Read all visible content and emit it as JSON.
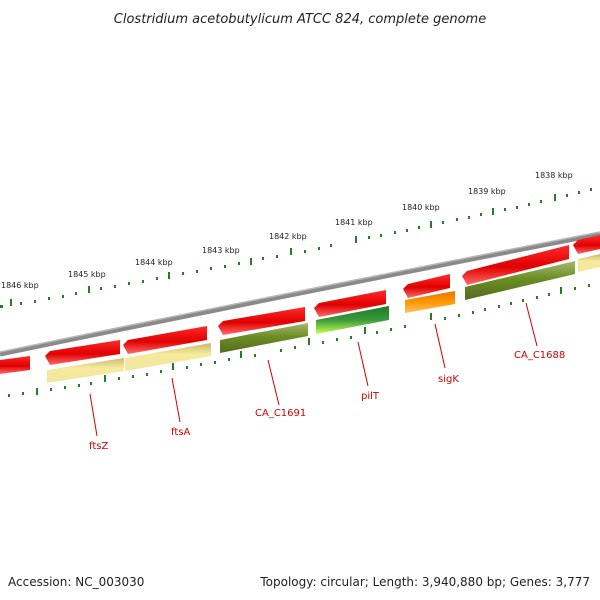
{
  "title": "Clostridium acetobutylicum ATCC 824, complete genome",
  "footer": {
    "accession": "Accession: NC_003030",
    "summary": "Topology: circular; Length: 3,940,880 bp; Genes: 3,777"
  },
  "ticks": [
    "1846 kbp",
    "1845 kbp",
    "1844 kbp",
    "1843 kbp",
    "1842 kbp",
    "1841 kbp",
    "1840 kbp",
    "1839 kbp",
    "1838 kbp"
  ],
  "genes": [
    {
      "label": "ftsZ"
    },
    {
      "label": "ftsA"
    },
    {
      "label": "CA_C1691"
    },
    {
      "label": "pilT"
    },
    {
      "label": "sigK"
    },
    {
      "label": "CA_C1688"
    }
  ],
  "colors": {
    "forward_cds": "#e00000",
    "khaki_feature": "#f0e08a",
    "olive_feature": "#6b8e23",
    "green_feature": "#3a9a3a",
    "lime_feature": "#b8f040",
    "orange_feature": "#ff9900",
    "backbone": "#808080",
    "tick_mark": "#2a7a2a",
    "label": "#d40000"
  }
}
